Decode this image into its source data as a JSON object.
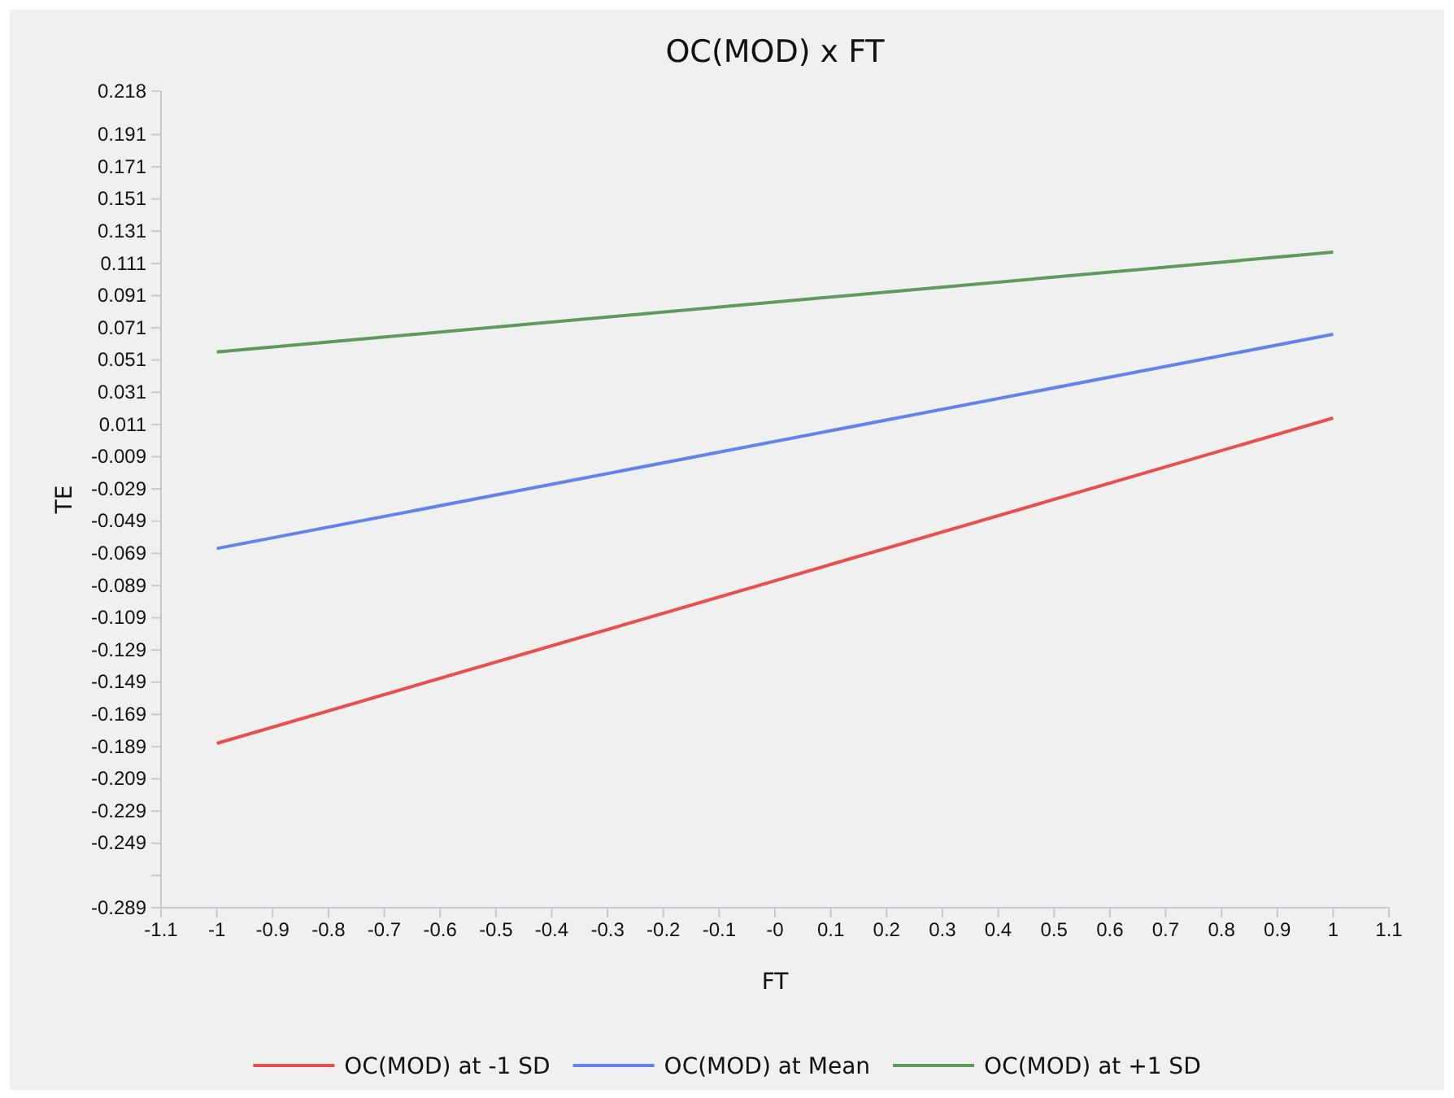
{
  "chart_data": {
    "type": "line",
    "title": "OC(MOD) x FT",
    "xlabel": "FT",
    "ylabel": "TE",
    "x": [
      -1,
      1
    ],
    "series": [
      {
        "name": "OC(MOD) at -1 SD",
        "color": "#e8504f",
        "values": [
          -0.187,
          0.015
        ]
      },
      {
        "name": "OC(MOD) at Mean",
        "color": "#6482ec",
        "values": [
          -0.066,
          0.067
        ]
      },
      {
        "name": "OC(MOD) at +1 SD",
        "color": "#5f9a5c",
        "values": [
          0.056,
          0.118
        ]
      }
    ],
    "xlim": [
      -1.1,
      1.1
    ],
    "xticks": [
      -1.1,
      -1,
      -0.9,
      -0.8,
      -0.7,
      -0.6,
      -0.5,
      -0.4,
      -0.3,
      -0.2,
      -0.1,
      {
        "value": 0,
        "label": "-0"
      },
      0.1,
      0.2,
      0.3,
      0.4,
      0.5,
      0.6,
      0.7,
      0.8,
      0.9,
      1,
      1.1
    ],
    "ylim": [
      -0.289,
      0.218
    ],
    "yticks": [
      -0.289,
      {
        "value": -0.269,
        "label": null
      },
      -0.249,
      -0.229,
      -0.209,
      -0.189,
      -0.169,
      -0.149,
      -0.129,
      -0.109,
      -0.089,
      -0.069,
      -0.049,
      -0.029,
      -0.009,
      0.011,
      0.031,
      0.051,
      0.071,
      0.091,
      0.111,
      0.131,
      0.151,
      0.171,
      0.191,
      0.218
    ],
    "grid": false,
    "legend": "bottom",
    "marker": "none",
    "line_style": "solid"
  }
}
